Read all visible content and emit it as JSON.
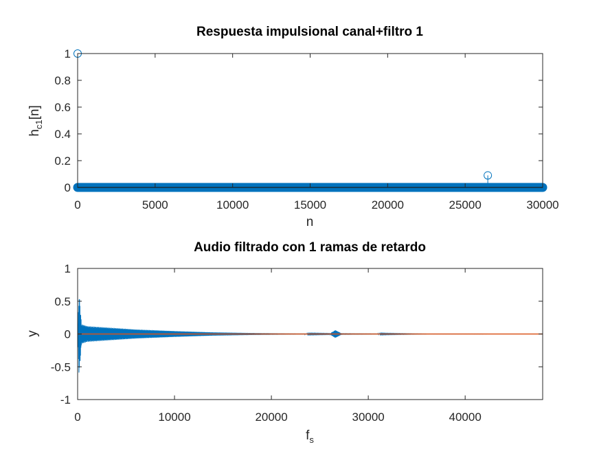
{
  "chart_data": [
    {
      "type": "stem",
      "title": "Respuesta impulsional canal+filtro 1",
      "xlabel": "n",
      "ylabel": {
        "main": "h",
        "sub": "c1",
        "suffix": "[n]"
      },
      "xlim": [
        0,
        30000
      ],
      "ylim": [
        0,
        1
      ],
      "xticks": [
        0,
        5000,
        10000,
        15000,
        20000,
        25000,
        30000
      ],
      "yticks": [
        0,
        0.2,
        0.4,
        0.6,
        0.8,
        1
      ],
      "grid": false,
      "stems": [
        {
          "x": 0,
          "y": 1
        },
        {
          "x": 26460,
          "y": 0.09
        }
      ],
      "zero_samples": {
        "from": 0,
        "to": 30000,
        "y": 0
      },
      "colors": {
        "stem": "#0072bd",
        "baseline": "#000000"
      }
    },
    {
      "type": "line",
      "title": "Audio filtrado con 1 ramas de retardo",
      "xlabel": {
        "main": "f",
        "sub": "s"
      },
      "ylabel": "y",
      "xlim": [
        0,
        48000
      ],
      "ylim": [
        -1,
        1
      ],
      "xticks": [
        0,
        10000,
        20000,
        30000,
        40000
      ],
      "yticks": [
        -1,
        -0.5,
        0,
        0.5,
        1
      ],
      "grid": false,
      "series": [
        {
          "color": "#0072bd",
          "kind": "decaying-oscillation",
          "envelope": [
            {
              "x": 0,
              "amp": 0.0
            },
            {
              "x": 150,
              "amp": 0.63
            },
            {
              "x": 400,
              "amp": 0.15
            },
            {
              "x": 1000,
              "amp": 0.12
            },
            {
              "x": 3000,
              "amp": 0.1
            },
            {
              "x": 6000,
              "amp": 0.07
            },
            {
              "x": 10000,
              "amp": 0.045
            },
            {
              "x": 14000,
              "amp": 0.025
            },
            {
              "x": 18000,
              "amp": 0.015
            },
            {
              "x": 22000,
              "amp": 0.008
            },
            {
              "x": 26000,
              "amp": 0.004
            },
            {
              "x": 26600,
              "amp": 0.06
            },
            {
              "x": 27200,
              "amp": 0.012
            },
            {
              "x": 32000,
              "amp": 0.005
            },
            {
              "x": 36000,
              "amp": 0.001
            },
            {
              "x": 48000,
              "amp": 0.0
            }
          ]
        },
        {
          "color": "#d95319",
          "kind": "constant",
          "x": [
            0,
            48000
          ],
          "y": [
            0,
            0
          ]
        }
      ]
    }
  ]
}
